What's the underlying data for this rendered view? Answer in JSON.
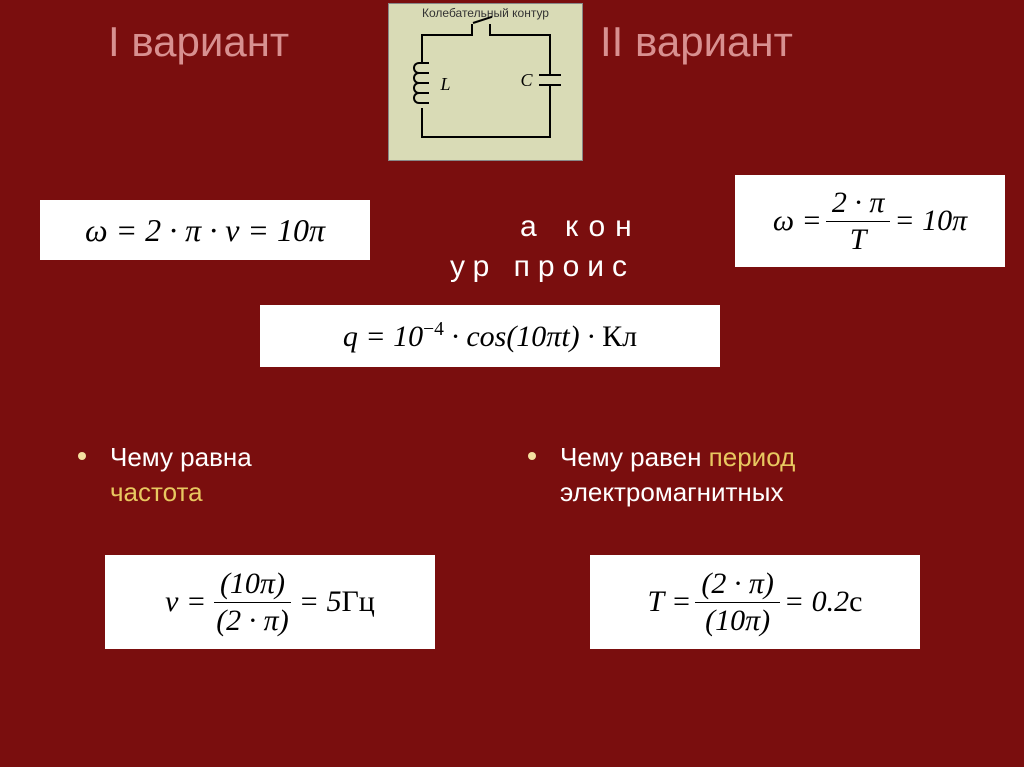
{
  "titles": {
    "left": "I вариант",
    "right": "II вариант"
  },
  "diagram": {
    "caption": "Колебательный контур",
    "L": "L",
    "C": "C"
  },
  "bg": {
    "line1": "а кон",
    "line2": "ур   проис"
  },
  "formulas": {
    "omega_left_html": "<span>&omega; = 2 &middot; &pi; &middot; &nu; = 10&pi;</span>",
    "omega_right_html": "<span>&omega; = </span><span class=\"frac\"><span class=\"num\">2 &middot; &pi;</span><span class=\"den\">T</span></span><span> = 10&pi;</span>",
    "q_html": "<span>q = 10<sup>&minus;4</sup> &middot; cos(10&pi;t) &middot; <span class=\"upright\">Кл</span></span>",
    "nu_html": "<span>&nu; = </span><span class=\"frac\"><span class=\"num\">(10&pi;)</span><span class=\"den\">(2 &middot; &pi;)</span></span><span> = 5<span class=\"upright\">Гц</span></span>",
    "T_html": "<span>T = </span><span class=\"frac\"><span class=\"num\">(2 &middot; &pi;)</span><span class=\"den\">(10&pi;)</span></span><span> = 0.2<span class=\"upright\">с</span></span>"
  },
  "bullets": {
    "left_html": "Чему равна <br><span class=\"hl\">частота</span>",
    "right_html": "Чему равен <span class=\"hl\">период</span><br>электромагнитных"
  },
  "colors": {
    "background": "#7a0e0e",
    "title": "#d89090",
    "highlight": "#e8c860",
    "formula_bg": "#ffffff",
    "diagram_bg": "#d9dbb6"
  }
}
